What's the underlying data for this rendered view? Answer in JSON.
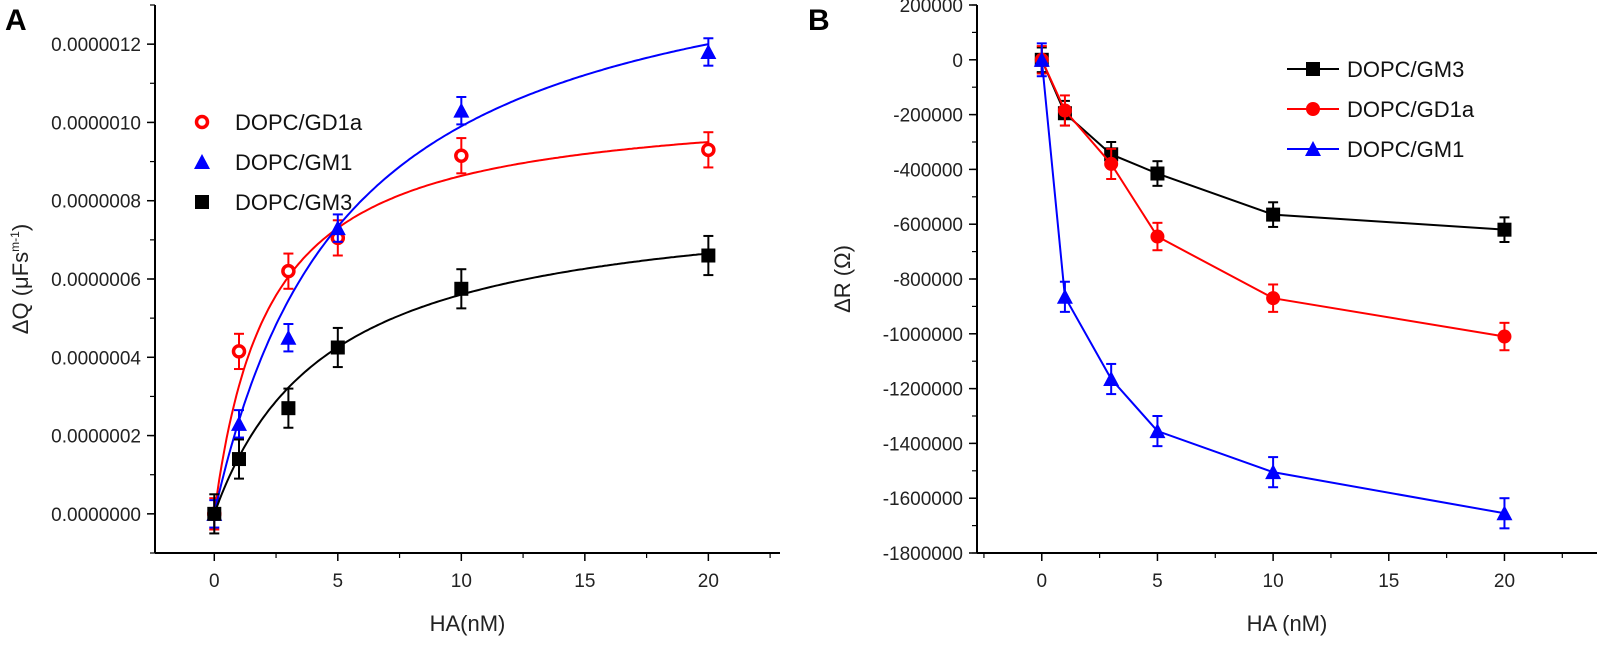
{
  "chart_data": [
    {
      "panel": "A",
      "type": "scatter",
      "xlabel": "HA(nM)",
      "ylabel_main": "ΔQ (μFs",
      "ylabel_sup": "m-1",
      "ylabel_end": ")",
      "xlim": [
        -2.4,
        22.9
      ],
      "ylim": [
        -1e-07,
        1.3e-06
      ],
      "xticks": [
        0,
        5,
        10,
        15,
        20
      ],
      "yticks": [
        0,
        2e-07,
        4e-07,
        6e-07,
        8e-07,
        1e-06,
        1.2e-06
      ],
      "ytick_labels": [
        "0.0000000",
        "0.0000002",
        "0.0000004",
        "0.0000006",
        "0.0000008",
        "0.0000010",
        "0.0000012"
      ],
      "legend_position": "top-left",
      "x": [
        0,
        1,
        3,
        5,
        10,
        20
      ],
      "series": [
        {
          "name": "DOPC/GD1a",
          "color": "#ff0000",
          "marker": "open-circle",
          "values": [
            0,
            4.15e-07,
            6.2e-07,
            7.05e-07,
            9.15e-07,
            9.3e-07
          ],
          "errors": [
            4e-08,
            4.5e-08,
            4.5e-08,
            4.5e-08,
            4.5e-08,
            4.5e-08
          ],
          "fit": {
            "model": "Bmax*x/(Kd+x)",
            "Bmax": 1.056e-06,
            "Kd": 2.23
          }
        },
        {
          "name": "DOPC/GM1",
          "color": "#0000ff",
          "marker": "triangle",
          "values": [
            0,
            2.3e-07,
            4.5e-07,
            7.3e-07,
            1.03e-06,
            1.18e-06
          ],
          "errors": [
            3.5e-08,
            3.5e-08,
            3.5e-08,
            3.5e-08,
            3.5e-08,
            3.5e-08
          ],
          "fit": {
            "model": "Bmax*x/(Kd+x)",
            "Bmax": 1.523e-06,
            "Kd": 5.38
          }
        },
        {
          "name": "DOPC/GM3",
          "color": "#000000",
          "marker": "square",
          "values": [
            0,
            1.4e-07,
            2.7e-07,
            4.25e-07,
            5.75e-07,
            6.6e-07
          ],
          "errors": [
            5e-08,
            5e-08,
            5e-08,
            5e-08,
            5e-08,
            5e-08
          ],
          "fit": {
            "model": "Bmax*x/(Kd+x)",
            "Bmax": 8.19e-07,
            "Kd": 4.62
          }
        }
      ]
    },
    {
      "panel": "B",
      "type": "line",
      "xlabel": "HA (nM)",
      "ylabel_main": "ΔR (Ω)",
      "xlim": [
        -2.8,
        24
      ],
      "ylim": [
        -1800000,
        200000
      ],
      "xticks": [
        0,
        5,
        10,
        15,
        20
      ],
      "yticks": [
        200000,
        0,
        -200000,
        -400000,
        -600000,
        -800000,
        -1000000,
        -1200000,
        -1400000,
        -1600000,
        -1800000
      ],
      "ytick_labels": [
        "200000",
        "0",
        "-200000",
        "-400000",
        "-600000",
        "-800000",
        "-1000000",
        "-1200000",
        "-1400000",
        "-1600000",
        "-1800000"
      ],
      "legend_position": "top-right",
      "x": [
        0,
        1,
        3,
        5,
        10,
        20
      ],
      "series": [
        {
          "name": "DOPC/GM3",
          "color": "#000000",
          "marker": "square",
          "values": [
            0,
            -195000,
            -345000,
            -415000,
            -565000,
            -620000
          ],
          "errors": [
            45000,
            45000,
            45000,
            45000,
            45000,
            45000
          ]
        },
        {
          "name": "DOPC/GD1a",
          "color": "#ff0000",
          "marker": "circle",
          "values": [
            0,
            -185000,
            -380000,
            -645000,
            -870000,
            -1010000
          ],
          "errors": [
            50000,
            55000,
            55000,
            50000,
            50000,
            50000
          ]
        },
        {
          "name": "DOPC/GM1",
          "color": "#0000ff",
          "marker": "triangle",
          "values": [
            0,
            -865000,
            -1165000,
            -1355000,
            -1505000,
            -1655000
          ],
          "errors": [
            60000,
            55000,
            55000,
            55000,
            55000,
            55000
          ]
        }
      ]
    }
  ]
}
